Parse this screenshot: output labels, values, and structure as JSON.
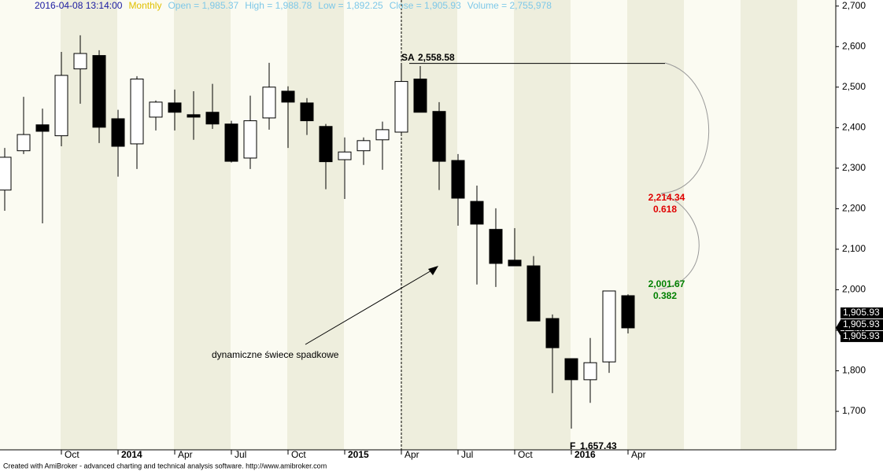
{
  "chart_data": {
    "type": "candlestick",
    "header": {
      "datetime": "2016-04-08 13:14:00",
      "interval": "Monthly",
      "fields": [
        "Open = 1,985.37",
        "High = 1,988.78",
        "Low = 1,892.25",
        "Close = 1,905.93",
        "Volume = 2,755,978"
      ]
    },
    "categories": [
      null,
      null,
      null,
      "Oct",
      null,
      null,
      "2014",
      null,
      null,
      "Apr",
      null,
      null,
      "Jul",
      null,
      null,
      "Oct",
      null,
      null,
      "2015",
      null,
      null,
      "Apr",
      null,
      null,
      "Jul",
      null,
      null,
      "Oct",
      null,
      null,
      "2016",
      null,
      null,
      "Apr"
    ],
    "open": [
      2246,
      2343,
      2407,
      2380,
      2545,
      2578,
      2422,
      2360,
      2426,
      2461,
      2432,
      2438,
      2409,
      2325,
      2424,
      2490,
      2461,
      2403,
      2321,
      2343,
      2370,
      2389,
      2520,
      2440,
      2319,
      2218,
      2149,
      2073,
      2059,
      1929,
      1830,
      1778,
      1822,
      1985.37
    ],
    "high": [
      2350,
      2476,
      2447,
      2587,
      2628,
      2591,
      2444,
      2527,
      2467,
      2494,
      2490,
      2508,
      2417,
      2479,
      2560,
      2502,
      2473,
      2409,
      2376,
      2376,
      2415,
      2558.58,
      2552,
      2463,
      2335,
      2257,
      2201,
      2152,
      2083,
      1939,
      1830,
      1881,
      1997,
      1988.78
    ],
    "low": [
      2195,
      2335,
      2164,
      2354,
      2459,
      2362,
      2279,
      2298,
      2393,
      2393,
      2370,
      2397,
      2314,
      2298,
      2395,
      2350,
      2382,
      2248,
      2224,
      2308,
      2296,
      2385,
      2438,
      2246,
      2158,
      2013,
      2007,
      2059,
      1923,
      1745,
      1657.43,
      1721,
      1795,
      1892.25
    ],
    "close": [
      2327,
      2383,
      2391,
      2529,
      2583,
      2401,
      2354,
      2520,
      2463,
      2438,
      2426,
      2409,
      2317,
      2417,
      2500,
      2463,
      2417,
      2316,
      2340,
      2368,
      2395,
      2514,
      2438,
      2317,
      2226,
      2162,
      2065,
      2059,
      1923,
      1857,
      1778,
      1820,
      1997,
      1905.93
    ],
    "up_color": "#ffffff",
    "down_color": "#000000",
    "ylim": [
      1605,
      2715
    ],
    "yticks": [
      {
        "value": 1700,
        "label": "1,700"
      },
      {
        "value": 1800,
        "label": "1,800"
      },
      {
        "value": 1900,
        "label": "1,900"
      },
      {
        "value": 2000,
        "label": "2,000"
      },
      {
        "value": 2100,
        "label": "2,100"
      },
      {
        "value": 2200,
        "label": "2,200"
      },
      {
        "value": 2300,
        "label": "2,300"
      },
      {
        "value": 2400,
        "label": "2,400"
      },
      {
        "value": 2500,
        "label": "2,500"
      },
      {
        "value": 2600,
        "label": "2,600"
      },
      {
        "value": 2700,
        "label": "2,700"
      }
    ],
    "price_labels": [
      "1,905.93",
      "1,905.93",
      "1,905.93"
    ],
    "swing_high": {
      "label": "SA",
      "value": 2558.58,
      "value_label": "2,558.58"
    },
    "swing_low": {
      "label": "F",
      "value": 1657.43,
      "value_label": "1,657.43"
    },
    "fib_levels": [
      {
        "value": 2214.34,
        "label": "2,214.34",
        "ratio": "0.618",
        "color": "#e00000"
      },
      {
        "value": 2001.67,
        "label": "2,001.67",
        "ratio": "0.382",
        "color": "#008000"
      }
    ],
    "annotation": "dynamiczne świece spadkowe",
    "footer": "Created with AmiBroker - advanced charting and technical analysis software. http://www.amibroker.com"
  }
}
